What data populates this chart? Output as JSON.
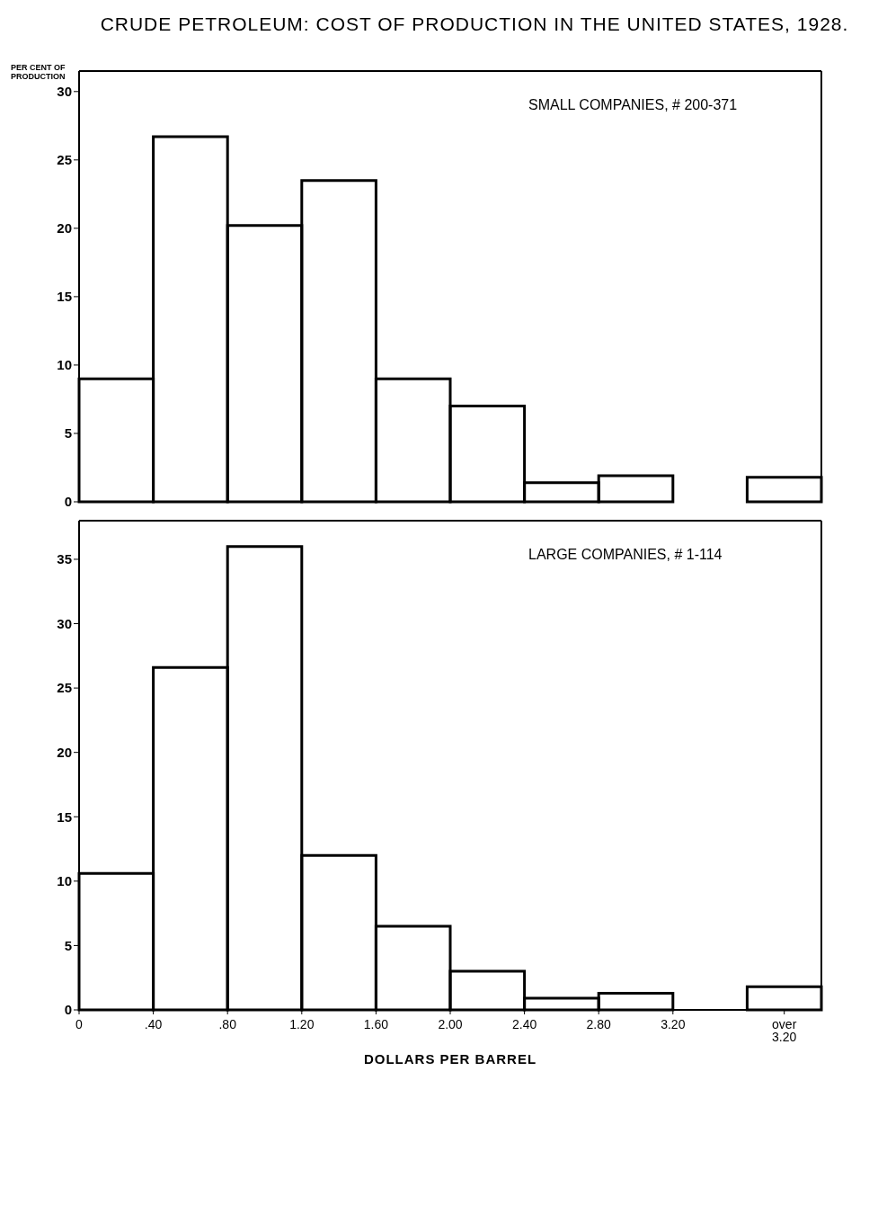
{
  "chart_data": [
    {
      "type": "histogram",
      "title": "CRUDE PETROLEUM: COST OF PRODUCTION IN THE UNITED STATES, 1928.",
      "ylabel": "PER CENT OF PRODUCTION",
      "annotations": [
        "SMALL COMPANIES, # 200-371"
      ],
      "color": "#000000",
      "bins": [
        0,
        0.4,
        0.8,
        1.2,
        1.6,
        2.0,
        2.4,
        2.8,
        3.2,
        3.6,
        4.0
      ],
      "values": [
        9,
        26.7,
        20.2,
        23.5,
        9,
        7,
        1.4,
        1.9,
        0,
        1.8
      ],
      "xlim": [
        0,
        4.0
      ],
      "ylim": [
        0,
        31.5
      ],
      "yticks": [
        0,
        5,
        10,
        15,
        20,
        25,
        30
      ],
      "tick_labels": "y"
    },
    {
      "type": "histogram",
      "xlabel": "DOLLARS PER BARREL",
      "annotations": [
        "LARGE COMPANIES, # 1-114"
      ],
      "color": "#000000",
      "bins": [
        0,
        0.4,
        0.8,
        1.2,
        1.6,
        2.0,
        2.4,
        2.8,
        3.2,
        3.6,
        4.0
      ],
      "values": [
        10.6,
        26.6,
        36,
        12,
        6.5,
        3,
        0.9,
        1.3,
        0,
        1.8
      ],
      "xlim": [
        0,
        4.0
      ],
      "xticks": [
        {
          "value": 0,
          "label": "0"
        },
        {
          "value": 0.4,
          "label": ".40"
        },
        {
          "value": 0.8,
          "label": ".80"
        },
        {
          "value": 1.2,
          "label": "1.20"
        },
        {
          "value": 1.6,
          "label": "1.60"
        },
        {
          "value": 2.0,
          "label": "2.00"
        },
        {
          "value": 2.4,
          "label": "2.40"
        },
        {
          "value": 2.8,
          "label": "2.80"
        },
        {
          "value": 3.2,
          "label": "3.20"
        },
        {
          "value": 3.8,
          "label": "over 3.20"
        }
      ],
      "ylim": [
        0,
        38
      ],
      "yticks": [
        0,
        5,
        10,
        15,
        20,
        25,
        30,
        35
      ]
    }
  ]
}
